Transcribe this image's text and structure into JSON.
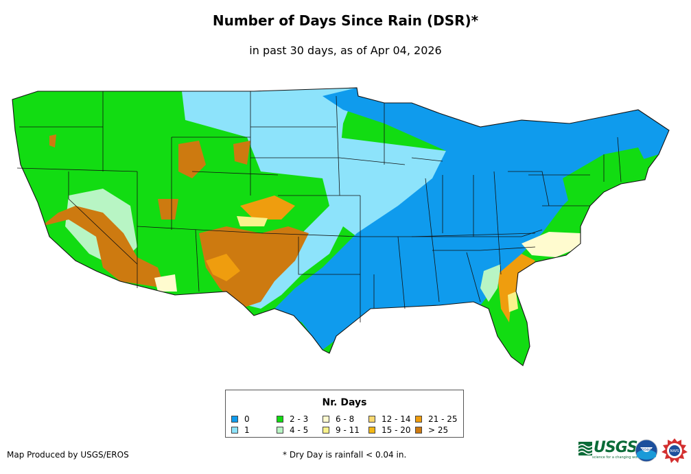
{
  "title": "Number of Days Since Rain (DSR)*",
  "subtitle": "in past 30 days, as of Apr 04, 2026",
  "legend": {
    "title": "Nr. Days",
    "items": [
      {
        "label": "0",
        "color": "#0f9bed"
      },
      {
        "label": "1",
        "color": "#8de3fb"
      },
      {
        "label": "2 - 3",
        "color": "#12dc12"
      },
      {
        "label": "4 - 5",
        "color": "#b8f5c4"
      },
      {
        "label": "6 - 8",
        "color": "#fffbcf"
      },
      {
        "label": "9 - 11",
        "color": "#f9f28c"
      },
      {
        "label": "12 - 14",
        "color": "#f8d870"
      },
      {
        "label": "15 - 20",
        "color": "#f2b716"
      },
      {
        "label": "21 - 25",
        "color": "#ef9d0e"
      },
      {
        "label": "> 25",
        "color": "#cd7a10"
      }
    ]
  },
  "footer": {
    "credit": "Map Produced by USGS/EROS",
    "note": "* Dry Day is rainfall < 0.04 in."
  },
  "logos": {
    "usgs": "USGS",
    "usgs_tagline": "science for a changing world",
    "noaa": "noaa",
    "nws": "NWS"
  }
}
